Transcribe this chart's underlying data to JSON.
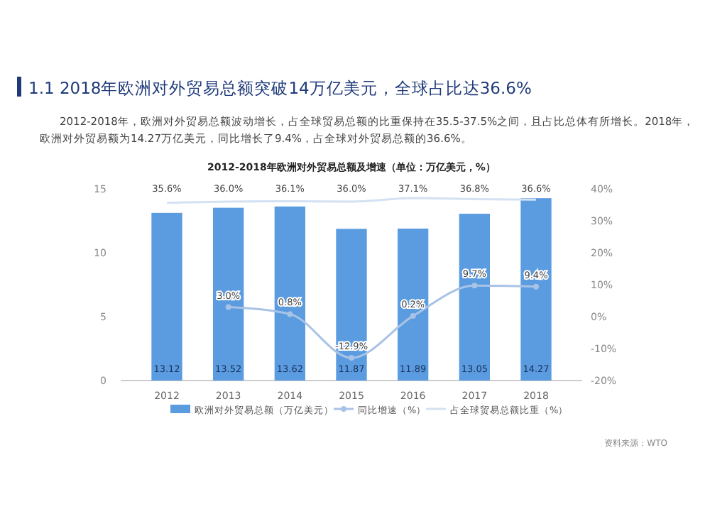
{
  "chart_data": {
    "type": "bar",
    "title": "1.1 2018年欧洲对外贸易总额突破14万亿美元，全球占比达36.6%",
    "subtitle": "2012-2018年，欧洲对外贸易总额波动增长，占全球贸易总额的比重保持在35.5-37.5%之间，且占比总体有所增长。2018年，欧洲对外贸易额为14.27万亿美元，同比增长了9.4%，占全球对外贸易总额的36.6%。",
    "annotations": [
      "2012-2018年欧洲对外贸易总额及增速（单位：万亿美元，%）",
      "资料来源：WTO"
    ],
    "categories": [
      "2012",
      "2013",
      "2014",
      "2015",
      "2016",
      "2017",
      "2018"
    ],
    "series": [
      {
        "name": "欧洲对外贸易总额（万亿美元）",
        "color": "#5b9be0",
        "values": [
          13.12,
          13.52,
          13.62,
          11.87,
          11.89,
          13.05,
          14.27
        ],
        "value_labels": [
          "13.12",
          "13.52",
          "13.62",
          "11.87",
          "11.89",
          "13.05",
          "14.27"
        ]
      },
      {
        "name": "同比增速（%）",
        "type": "line",
        "axis": "y2",
        "marker": "circle",
        "color": "#a9c3e6",
        "values": [
          null,
          3.0,
          0.8,
          -12.9,
          0.2,
          9.7,
          9.4
        ],
        "value_labels": [
          null,
          "3.0%",
          "0.8%",
          "-12.9%",
          "0.2%",
          "9.7%",
          "9.4%"
        ]
      },
      {
        "name": "占全球贸易总额比重（%）",
        "type": "line",
        "axis": "y2",
        "color": "#d3e1f2",
        "values": [
          35.6,
          36.0,
          36.1,
          36.0,
          37.1,
          36.8,
          36.6
        ],
        "value_labels": [
          "35.6%",
          "36.0%",
          "36.1%",
          "36.0%",
          "37.1%",
          "36.8%",
          "36.6%"
        ]
      }
    ],
    "ylim": [
      0,
      15
    ],
    "yticks": [
      0,
      5,
      10,
      15
    ],
    "y2lim": [
      -20,
      40
    ],
    "y2ticks": [
      {
        "value": -20,
        "label": "-20%"
      },
      {
        "value": -10,
        "label": "-10%"
      },
      {
        "value": 0,
        "label": "0%"
      },
      {
        "value": 10,
        "label": "10%"
      },
      {
        "value": 20,
        "label": "20%"
      },
      {
        "value": 30,
        "label": "30%"
      },
      {
        "value": 40,
        "label": "40%"
      }
    ],
    "legend": "bottom"
  }
}
